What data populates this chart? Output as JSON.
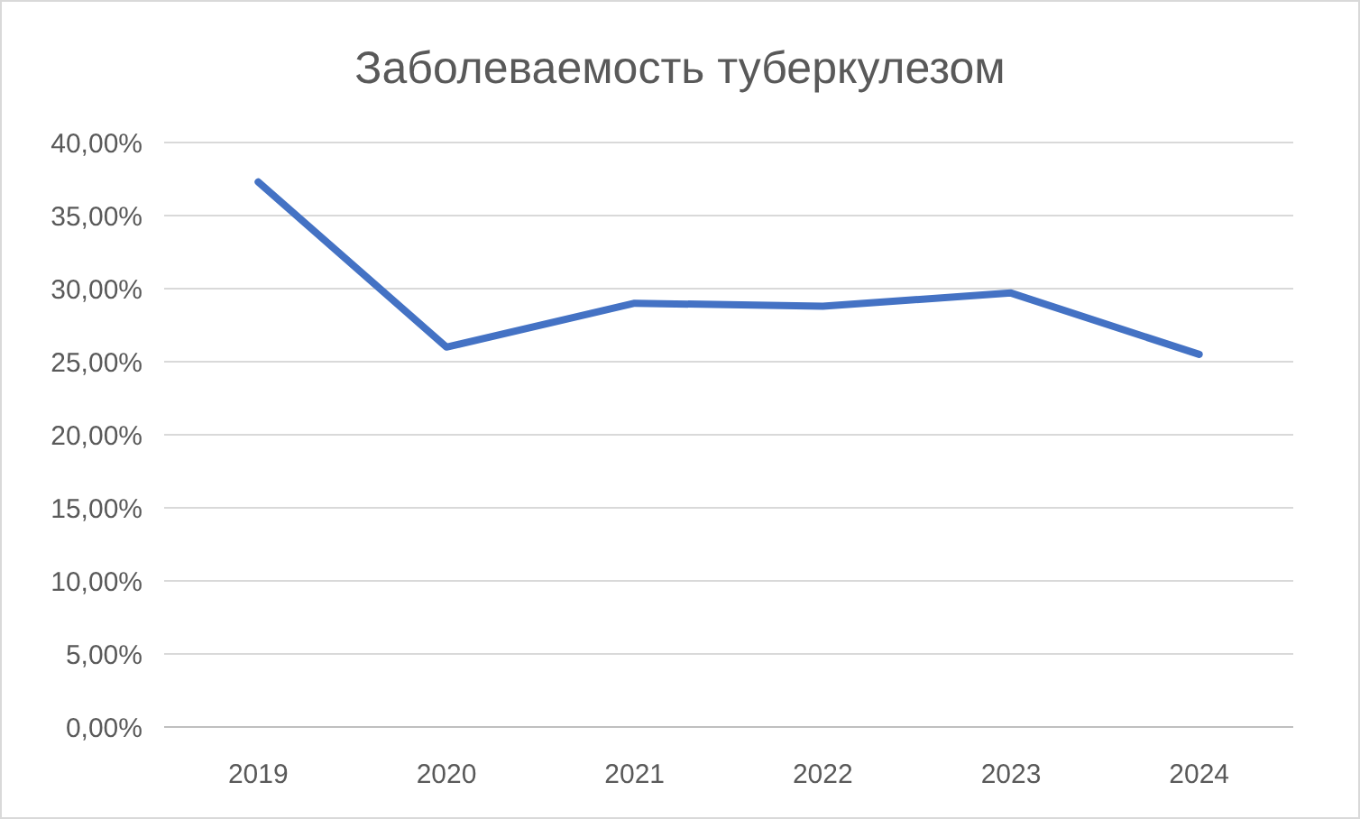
{
  "chart_data": {
    "type": "line",
    "title": "Заболеваемость туберкулезом",
    "categories": [
      "2019",
      "2020",
      "2021",
      "2022",
      "2023",
      "2024"
    ],
    "series": [
      {
        "color": "#4472c4",
        "values": [
          37.3,
          26.0,
          29.0,
          28.8,
          29.7,
          25.5
        ]
      }
    ],
    "ylim": [
      0,
      40
    ],
    "yticks": [
      {
        "value": 0,
        "label": "0,00%"
      },
      {
        "value": 5,
        "label": "5,00%"
      },
      {
        "value": 10,
        "label": "10,00%"
      },
      {
        "value": 15,
        "label": "15,00%"
      },
      {
        "value": 20,
        "label": "20,00%"
      },
      {
        "value": 25,
        "label": "25,00%"
      },
      {
        "value": 30,
        "label": "30,00%"
      },
      {
        "value": 35,
        "label": "35,00%"
      },
      {
        "value": 40,
        "label": "40,00%"
      }
    ],
    "grid": "y",
    "marker": "none",
    "line_style": "solid"
  }
}
